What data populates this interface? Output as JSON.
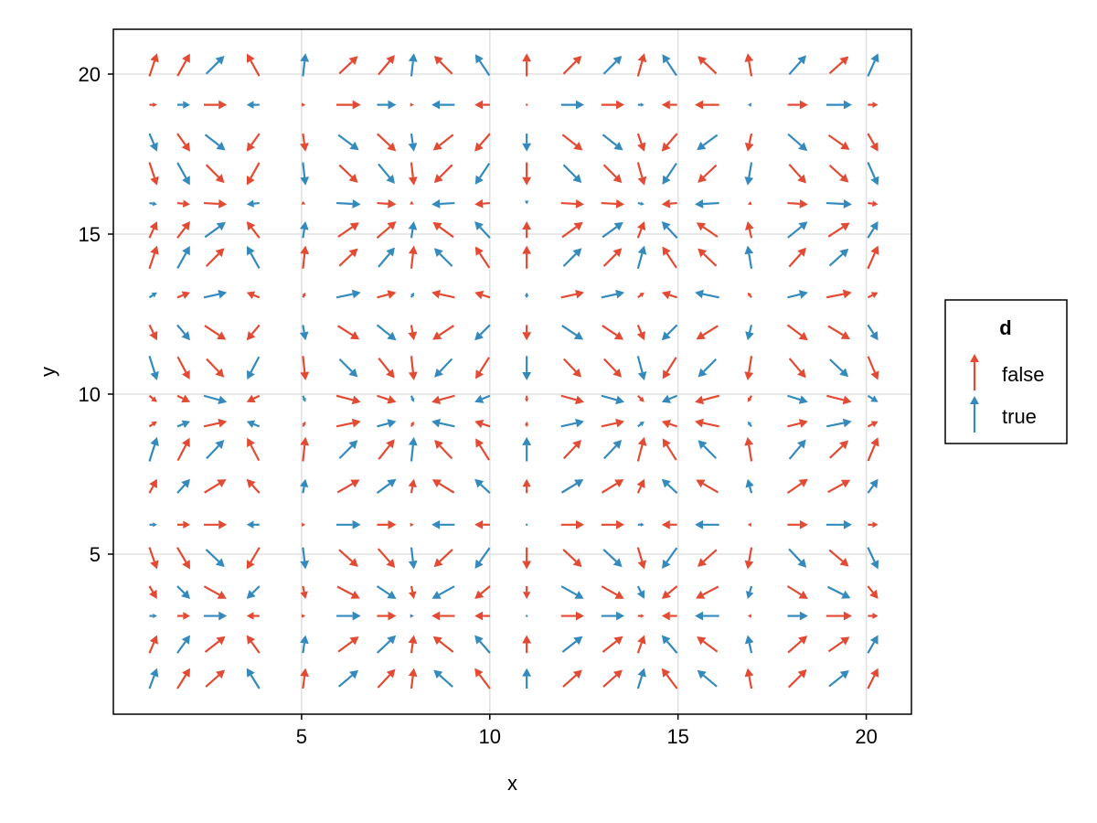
{
  "chart_data": {
    "type": "quiver",
    "title": "",
    "xlabel": "x",
    "ylabel": "y",
    "xlim": [
      0,
      21.2
    ],
    "ylim": [
      0,
      21.4
    ],
    "xticks": [
      5,
      10,
      15,
      20
    ],
    "yticks": [
      5,
      10,
      15,
      20
    ],
    "grid": true,
    "x": [
      1.06,
      1.87,
      2.71,
      3.71,
      5.07,
      6.25,
      7.26,
      7.95,
      8.76,
      9.8,
      10.98,
      12.2,
      13.27,
      14.02,
      14.77,
      15.77,
      16.9,
      18.18,
      19.28,
      20.18
    ],
    "y": [
      1.12,
      2.19,
      3.07,
      3.8,
      4.87,
      5.92,
      7.13,
      8.28,
      9.07,
      9.85,
      10.81,
      11.92,
      13.1,
      14.28,
      15.14,
      15.95,
      16.88,
      17.86,
      19.04,
      20.29
    ],
    "u_pattern_by_x": [
      0.3,
      0.5,
      0.9,
      -0.5,
      0.1,
      0.95,
      0.75,
      0.1,
      -0.9,
      -0.6,
      0.0,
      0.9,
      0.9,
      0.25,
      -0.6,
      -0.95,
      -0.15,
      0.8,
      1.0,
      0.4
    ],
    "v_pattern_by_y": [
      0.8,
      0.7,
      0.0,
      -0.5,
      -0.85,
      0.0,
      0.55,
      0.95,
      0.2,
      -0.25,
      -0.95,
      -0.6,
      0.2,
      0.9,
      0.65,
      -0.05,
      -0.9,
      -0.7,
      0.0,
      0.9
    ],
    "legend": {
      "title": "d",
      "position": "right",
      "entries": [
        {
          "label": "false",
          "color": "#e24a33"
        },
        {
          "label": "true",
          "color": "#348abd"
        }
      ]
    },
    "colors": {
      "false": "#e24a33",
      "true": "#348abd"
    }
  }
}
